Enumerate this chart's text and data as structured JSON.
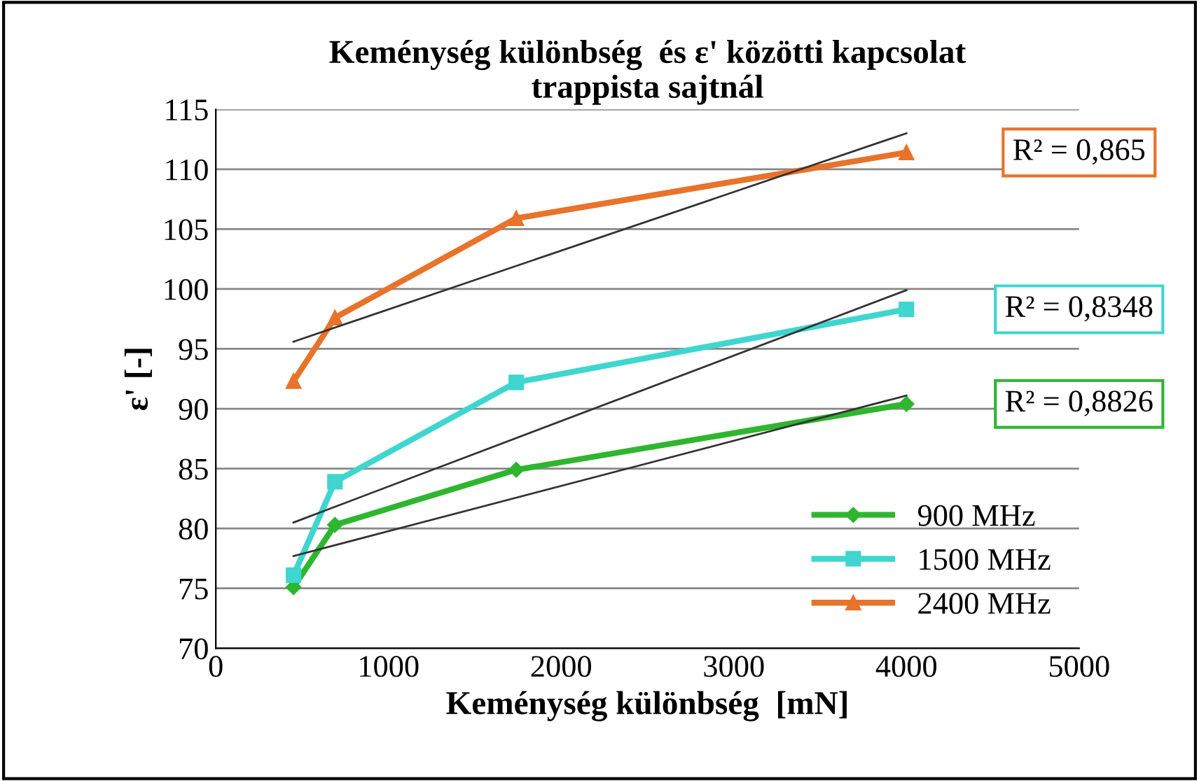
{
  "chart_data": {
    "type": "line",
    "title": "Keménység különbség  és ε' közötti kapcsolat\ntrappista sajtnál",
    "xlabel": "Keménység különbség  [mN]",
    "ylabel": "ε' [-]",
    "xlim": [
      0,
      5000
    ],
    "xticks": [
      0,
      1000,
      2000,
      3000,
      4000,
      5000
    ],
    "ylim": [
      70,
      115
    ],
    "yticks": [
      70,
      75,
      80,
      85,
      90,
      95,
      100,
      105,
      110,
      115
    ],
    "grid": "y",
    "legend": "bottom right",
    "line_style": "solid",
    "series": [
      {
        "name": "900 MHz",
        "color": "#2fb62f",
        "marker": "diamond",
        "x": [
          450,
          690,
          1740,
          4000
        ],
        "values": [
          75.1,
          80.3,
          84.9,
          90.4
        ]
      },
      {
        "name": "1500 MHz",
        "color": "#3fd6cf",
        "marker": "square",
        "x": [
          450,
          690,
          1740,
          4000
        ],
        "values": [
          76.1,
          83.9,
          92.2,
          98.3
        ]
      },
      {
        "name": "2400 MHz",
        "color": "#e8732a",
        "marker": "triangle",
        "x": [
          450,
          690,
          1740,
          4000
        ],
        "values": [
          92.3,
          97.6,
          105.9,
          111.4
        ]
      },
      {
        "color": "#333333",
        "marker": "none",
        "x": [
          450,
          4000
        ],
        "values": [
          77.7,
          91.1
        ]
      },
      {
        "color": "#333333",
        "marker": "none",
        "x": [
          450,
          4000
        ],
        "values": [
          80.5,
          99.9
        ]
      },
      {
        "color": "#333333",
        "marker": "none",
        "x": [
          450,
          4000
        ],
        "values": [
          95.6,
          113.0
        ]
      }
    ],
    "annotations": [
      "R² = 0,865",
      "R² = 0,8348",
      "R² = 0,8826"
    ]
  }
}
